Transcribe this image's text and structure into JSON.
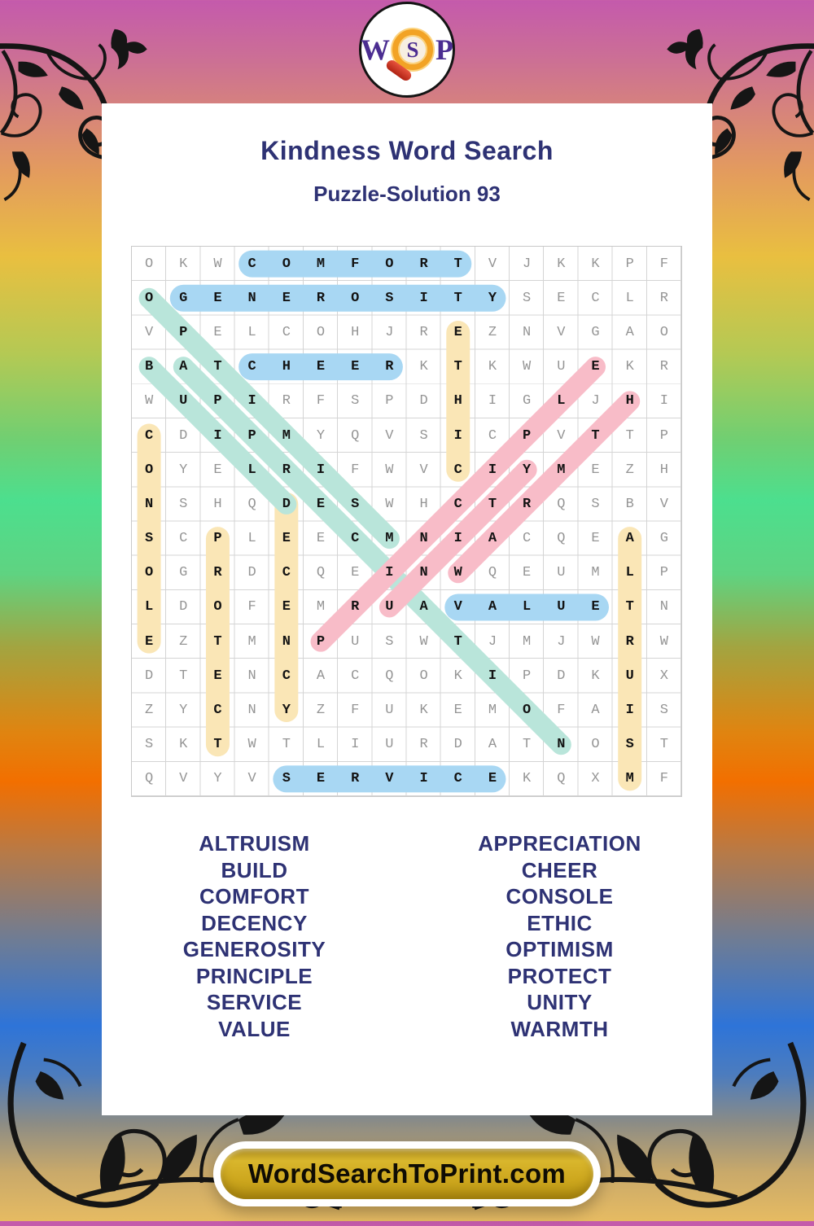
{
  "header": {
    "title": "Kindness Word Search",
    "subtitle": "Puzzle-Solution 93"
  },
  "logo": {
    "w": "W",
    "s": "S",
    "p": "P"
  },
  "footer": {
    "button_label": "WordSearchToPrint.com"
  },
  "colors": {
    "highlight_blue": "#a8d7f3",
    "highlight_teal": "#b9e5da",
    "highlight_pink": "#f8bcc8",
    "highlight_yellow": "#fae6b6",
    "title_navy": "#2e3274",
    "grid_letter_gray": "#959595",
    "grid_letter_found": "#131313",
    "button_gold": "#cda71e"
  },
  "grid": {
    "size": 16,
    "rows": [
      "OKWCOMFORTVJKKPF",
      "OGENEROSITYSECLR",
      "VPELCOHJREZNVGAO",
      "BATCHEERKTKWUEKR",
      "WUPIRFSPDHIGLJHI",
      "CDIPMYQVSICPVTTP",
      "OYELRIFWVCIYMEZH",
      "NSHQDESWHCTRQSBV",
      "SCPLEECMNIACQEAG",
      "OGRDCQEINWQEUMLP",
      "LDOFEMRUAVALUETN",
      "EZTMNPUSWTJMJWRW",
      "DTENCACQOKIPDKUX",
      "ZYCNYZFUKEMOFAIS",
      "SKTWTLIURDATNOST",
      "QVYVSERVICEKQXMF"
    ],
    "highlights": [
      {
        "word": "ETHIC",
        "color": "yellow",
        "from": [
          3,
          10
        ],
        "to": [
          7,
          10
        ]
      },
      {
        "word": "CONSOLE",
        "color": "yellow",
        "from": [
          6,
          1
        ],
        "to": [
          12,
          1
        ]
      },
      {
        "word": "DECENCY",
        "color": "yellow",
        "from": [
          8,
          5
        ],
        "to": [
          14,
          5
        ]
      },
      {
        "word": "PROTECT",
        "color": "yellow",
        "from": [
          9,
          3
        ],
        "to": [
          15,
          3
        ]
      },
      {
        "word": "ALTRUISM",
        "color": "yellow",
        "from": [
          9,
          15
        ],
        "to": [
          16,
          15
        ]
      },
      {
        "word": "OPTIMISM",
        "color": "teal",
        "from": [
          2,
          1
        ],
        "to": [
          9,
          8
        ]
      },
      {
        "word": "BUILD",
        "color": "teal",
        "from": [
          4,
          1
        ],
        "to": [
          8,
          5
        ]
      },
      {
        "word": "APPRECIATION",
        "color": "teal",
        "from": [
          4,
          2
        ],
        "to": [
          15,
          13
        ]
      },
      {
        "word": "PRINCIPLE",
        "color": "pink",
        "from": [
          12,
          6
        ],
        "to": [
          4,
          14
        ]
      },
      {
        "word": "UNITY",
        "color": "pink",
        "from": [
          11,
          8
        ],
        "to": [
          7,
          12
        ]
      },
      {
        "word": "WARMTH",
        "color": "pink",
        "from": [
          10,
          10
        ],
        "to": [
          5,
          15
        ]
      },
      {
        "word": "COMFORT",
        "color": "blue",
        "from": [
          1,
          4
        ],
        "to": [
          1,
          10
        ]
      },
      {
        "word": "GENEROSITY",
        "color": "blue",
        "from": [
          2,
          2
        ],
        "to": [
          2,
          11
        ]
      },
      {
        "word": "CHEER",
        "color": "blue",
        "from": [
          4,
          4
        ],
        "to": [
          4,
          8
        ]
      },
      {
        "word": "VALUE",
        "color": "blue",
        "from": [
          11,
          10
        ],
        "to": [
          11,
          14
        ]
      },
      {
        "word": "SERVICE",
        "color": "blue",
        "from": [
          16,
          5
        ],
        "to": [
          16,
          11
        ]
      }
    ]
  },
  "word_list": {
    "left": [
      "ALTRUISM",
      "BUILD",
      "COMFORT",
      "DECENCY",
      "GENEROSITY",
      "PRINCIPLE",
      "SERVICE",
      "VALUE"
    ],
    "right": [
      "APPRECIATION",
      "CHEER",
      "CONSOLE",
      "ETHIC",
      "OPTIMISM",
      "PROTECT",
      "UNITY",
      "WARMTH"
    ]
  }
}
